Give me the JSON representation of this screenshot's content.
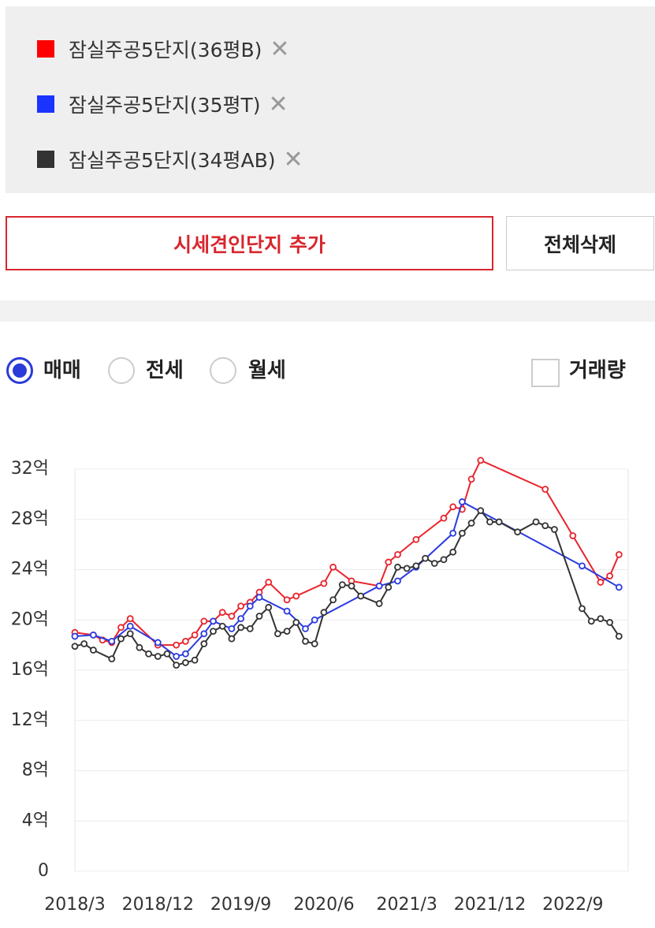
{
  "comparison_list": [
    {
      "label": "잠실주공5단지(36평B)",
      "color": "#ff0000"
    },
    {
      "label": "잠실주공5단지(35평T)",
      "color": "#1a33ff"
    },
    {
      "label": "잠실주공5단지(34평AB)",
      "color": "#333333"
    }
  ],
  "buttons": {
    "add": "시세견인단지 추가",
    "clear": "전체삭제"
  },
  "tabs": [
    {
      "label": "매매",
      "selected": true
    },
    {
      "label": "전세",
      "selected": false
    },
    {
      "label": "월세",
      "selected": false
    }
  ],
  "volume_checkbox": {
    "label": "거래량",
    "checked": false
  },
  "chart_data": {
    "type": "line",
    "xlim": [
      "2018/3",
      "2023/3"
    ],
    "xticks": [
      "2018/3",
      "2018/12",
      "2019/9",
      "2020/6",
      "2021/3",
      "2021/12",
      "2022/9"
    ],
    "ylim": [
      0,
      32
    ],
    "yticks": [
      0,
      {
        "value": 4,
        "label": "4억"
      },
      {
        "value": 8,
        "label": "8억"
      },
      {
        "value": 12,
        "label": "12억"
      },
      {
        "value": 16,
        "label": "16억"
      },
      {
        "value": 20,
        "label": "20억"
      },
      {
        "value": 24,
        "label": "24억"
      },
      {
        "value": 28,
        "label": "28억"
      },
      {
        "value": 32,
        "label": "32억"
      }
    ],
    "grid": true,
    "series": [
      {
        "name": "잠실주공5단지(36평B)",
        "color": "#e8242d",
        "x": [
          "2018/3",
          "2018/5",
          "2018/6",
          "2018/7",
          "2018/8",
          "2018/9",
          "2018/12",
          "2019/2",
          "2019/3",
          "2019/4",
          "2019/5",
          "2019/6",
          "2019/7",
          "2019/8",
          "2019/9",
          "2019/10",
          "2019/11",
          "2019/12",
          "2020/2",
          "2020/3",
          "2020/6",
          "2020/7",
          "2020/9",
          "2020/12",
          "2021/1",
          "2021/2",
          "2021/4",
          "2021/7",
          "2021/8",
          "2021/9",
          "2021/10",
          "2021/11",
          "2022/6",
          "2022/9",
          "2022/12",
          "2023/1",
          "2023/2"
        ],
        "values": [
          19.0,
          18.8,
          18.4,
          18.2,
          19.4,
          20.1,
          18.0,
          18.0,
          18.3,
          18.8,
          19.9,
          19.9,
          20.6,
          20.3,
          21.1,
          21.4,
          22.2,
          23.0,
          21.6,
          21.9,
          22.9,
          24.2,
          23.1,
          22.7,
          24.6,
          25.2,
          26.4,
          28.1,
          29.0,
          28.8,
          31.2,
          32.7,
          30.4,
          26.7,
          23.0,
          23.5,
          25.2
        ]
      },
      {
        "name": "잠실주공5단지(35평T)",
        "color": "#2b3be0",
        "x": [
          "2018/3",
          "2018/5",
          "2018/7",
          "2018/9",
          "2018/12",
          "2019/2",
          "2019/3",
          "2019/5",
          "2019/6",
          "2019/8",
          "2019/9",
          "2019/10",
          "2019/11",
          "2020/2",
          "2020/4",
          "2020/5",
          "2020/12",
          "2021/2",
          "2021/4",
          "2021/8",
          "2021/9",
          "2022/10",
          "2023/2"
        ],
        "values": [
          18.7,
          18.8,
          18.3,
          19.5,
          18.2,
          17.1,
          17.3,
          18.9,
          19.9,
          19.3,
          20.1,
          21.1,
          21.8,
          20.7,
          19.3,
          20.0,
          22.7,
          23.1,
          24.2,
          26.9,
          29.4,
          24.3,
          22.6
        ]
      },
      {
        "name": "잠실주공5단지(34평AB)",
        "color": "#333333",
        "x": [
          "2018/3",
          "2018/4",
          "2018/5",
          "2018/7",
          "2018/8",
          "2018/9",
          "2018/10",
          "2018/11",
          "2018/12",
          "2019/1",
          "2019/2",
          "2019/3",
          "2019/4",
          "2019/5",
          "2019/6",
          "2019/7",
          "2019/8",
          "2019/9",
          "2019/10",
          "2019/11",
          "2019/12",
          "2020/1",
          "2020/2",
          "2020/3",
          "2020/4",
          "2020/5",
          "2020/6",
          "2020/7",
          "2020/8",
          "2020/9",
          "2020/10",
          "2020/12",
          "2021/1",
          "2021/2",
          "2021/3",
          "2021/4",
          "2021/5",
          "2021/6",
          "2021/7",
          "2021/8",
          "2021/9",
          "2021/10",
          "2021/11",
          "2021/12",
          "2022/1",
          "2022/3",
          "2022/5",
          "2022/6",
          "2022/7",
          "2022/10",
          "2022/11",
          "2022/12",
          "2023/1",
          "2023/2"
        ],
        "values": [
          17.9,
          18.1,
          17.6,
          16.9,
          18.5,
          18.9,
          17.8,
          17.3,
          17.1,
          17.3,
          16.4,
          16.6,
          16.8,
          18.1,
          19.1,
          19.5,
          18.5,
          19.4,
          19.3,
          20.3,
          21.0,
          18.9,
          19.1,
          19.8,
          18.3,
          18.1,
          20.6,
          21.6,
          22.8,
          22.7,
          21.9,
          21.3,
          22.6,
          24.2,
          24.1,
          24.3,
          24.9,
          24.5,
          24.8,
          25.4,
          26.9,
          27.7,
          28.7,
          27.8,
          27.8,
          27.0,
          27.8,
          27.5,
          27.2,
          20.9,
          19.9,
          20.1,
          19.8,
          18.7
        ]
      }
    ]
  }
}
